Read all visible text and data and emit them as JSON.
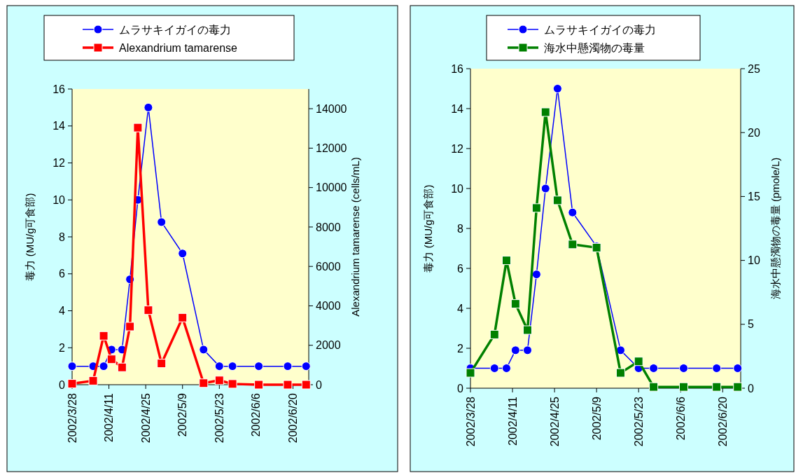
{
  "chart_data": [
    {
      "type": "line",
      "ylabel": "毒力 (MU/g可食部)",
      "y2label": "Alexandrium tamarense (cells/mL)",
      "legend": "top",
      "grid": false,
      "x": [
        "2002-03-28",
        "2002-04-05",
        "2002-04-09",
        "2002-04-12",
        "2002-04-16",
        "2002-04-19",
        "2002-04-22",
        "2002-04-26",
        "2002-05-01",
        "2002-05-09",
        "2002-05-17",
        "2002-05-23",
        "2002-05-28",
        "2002-06-07",
        "2002-06-18",
        "2002-06-25"
      ],
      "xlim": [
        "2002-03-28",
        "2002-06-26"
      ],
      "xticks": [
        {
          "value": "2002-03-28",
          "label": "2002/3/28"
        },
        {
          "value": "2002-04-11",
          "label": "2002/4/11"
        },
        {
          "value": "2002-04-25",
          "label": "2002/4/25"
        },
        {
          "value": "2002-05-09",
          "label": "2002/5/9"
        },
        {
          "value": "2002-05-23",
          "label": "2002/5/23"
        },
        {
          "value": "2002-06-06",
          "label": "2002/6/6"
        },
        {
          "value": "2002-06-20",
          "label": "2002/6/20"
        }
      ],
      "ylim": [
        0,
        16
      ],
      "yticks": [
        0,
        2,
        4,
        6,
        8,
        10,
        12,
        14,
        16
      ],
      "y2lim": [
        0,
        15000
      ],
      "y2ticks": [
        0,
        2000,
        4000,
        6000,
        8000,
        10000,
        12000,
        14000
      ],
      "series": [
        {
          "name": "ムラサキイガイの毒力",
          "color": "#0000ff",
          "marker": "circle",
          "values": [
            1,
            1,
            1,
            1.9,
            1.9,
            5.7,
            10,
            15,
            8.8,
            7.1,
            1.9,
            1,
            1,
            1,
            1,
            1
          ]
        },
        {
          "name": "Alexandrium tamarense",
          "color": "#ff0000",
          "marker": "square",
          "axis": "y2",
          "values": [
            50,
            200,
            2480,
            1290,
            880,
            2950,
            13040,
            3780,
            1080,
            3400,
            80,
            220,
            40,
            0,
            0,
            0
          ]
        }
      ]
    },
    {
      "type": "line",
      "ylabel": "毒力 (MU/g可食部)",
      "y2label": "海水中懸濁物の毒量 (pmole/L)",
      "legend": "top",
      "grid": false,
      "x": [
        "2002-03-28",
        "2002-04-05",
        "2002-04-09",
        "2002-04-12",
        "2002-04-16",
        "2002-04-19",
        "2002-04-22",
        "2002-04-26",
        "2002-05-01",
        "2002-05-09",
        "2002-05-17",
        "2002-05-23",
        "2002-05-28",
        "2002-06-07",
        "2002-06-18",
        "2002-06-25"
      ],
      "xlim": [
        "2002-03-28",
        "2002-06-26"
      ],
      "xticks": [
        {
          "value": "2002-03-28",
          "label": "2002/3/28"
        },
        {
          "value": "2002-04-11",
          "label": "2002/4/11"
        },
        {
          "value": "2002-04-25",
          "label": "2002/4/25"
        },
        {
          "value": "2002-05-09",
          "label": "2002/5/9"
        },
        {
          "value": "2002-05-23",
          "label": "2002/5/23"
        },
        {
          "value": "2002-06-06",
          "label": "2002/6/6"
        },
        {
          "value": "2002-06-20",
          "label": "2002/6/20"
        }
      ],
      "ylim": [
        0,
        16
      ],
      "yticks": [
        0,
        2,
        4,
        6,
        8,
        10,
        12,
        14,
        16
      ],
      "y2lim": [
        0,
        25
      ],
      "y2ticks": [
        0,
        5,
        10,
        15,
        20,
        25
      ],
      "series": [
        {
          "name": "ムラサキイガイの毒力",
          "color": "#0000ff",
          "marker": "circle",
          "values": [
            1,
            1,
            1,
            1.9,
            1.9,
            5.7,
            10,
            15,
            8.8,
            7.1,
            1.9,
            1,
            1,
            1,
            1,
            1
          ]
        },
        {
          "name": "海水中懸濁物の毒量",
          "color": "#008000",
          "marker": "square",
          "axis": "y2",
          "values": [
            1.2,
            4.2,
            10,
            6.6,
            4.55,
            14.1,
            21.6,
            14.7,
            11.25,
            11,
            1.2,
            2.1,
            0.1,
            0.1,
            0.1,
            0.1
          ]
        }
      ]
    }
  ]
}
